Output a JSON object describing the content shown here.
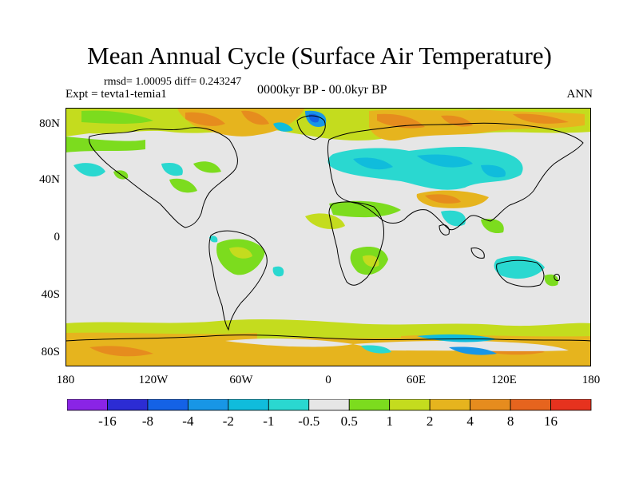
{
  "title": "Mean Annual Cycle (Surface Air Temperature)",
  "stats": {
    "rmsd_label": "rmsd=",
    "rmsd": "1.00095",
    "diff_label": "diff=",
    "diff": "0.243247"
  },
  "experiment": "Expt = tevta1-temia1",
  "period": "0000kyr BP - 00.0kyr BP",
  "season": "ANN",
  "colors": {
    "land_neutral": "#e6e6e6",
    "outline": "#000000",
    "scale": [
      "#8a24e6",
      "#2c2cd4",
      "#1462e6",
      "#1896e6",
      "#10bcdc",
      "#2ad8d0",
      "#e6e6e6",
      "#7cdc1e",
      "#c4dc1e",
      "#e6b41e",
      "#e68c1e",
      "#e6641e",
      "#e6321e"
    ]
  },
  "map": {
    "lat_ticks": [
      "80N",
      "40N",
      "0",
      "40S",
      "80S"
    ],
    "lon_ticks": [
      "180",
      "120W",
      "60W",
      "0",
      "60E",
      "120E",
      "180"
    ]
  },
  "colorbar": {
    "labels": [
      "-16",
      "-8",
      "-4",
      "-2",
      "-1",
      "-0.5",
      "0.5",
      "1",
      "2",
      "4",
      "8",
      "16"
    ]
  }
}
